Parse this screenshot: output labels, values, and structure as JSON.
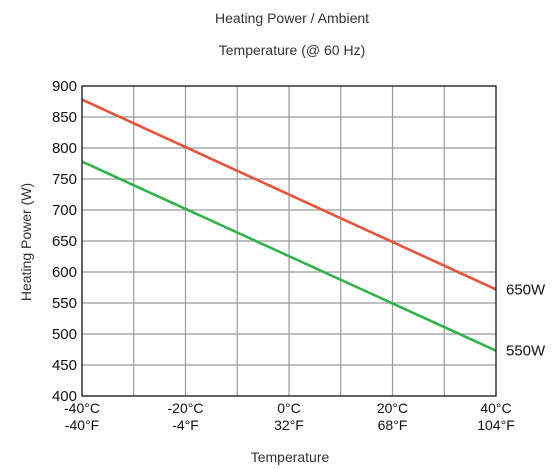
{
  "chart_data": {
    "type": "line",
    "title_line1": "Heating Power / Ambient",
    "title_line2": "Temperature (@ 60 Hz)",
    "xlabel": "Temperature",
    "ylabel": "Heating Power (W)",
    "x": [
      -40,
      40
    ],
    "xlim": [
      -40,
      40
    ],
    "ylim": [
      400,
      900
    ],
    "y_ticks": [
      "900",
      "850",
      "800",
      "750",
      "700",
      "650",
      "600",
      "550",
      "500",
      "450",
      "400"
    ],
    "x_ticks": [
      {
        "c": "-40°C",
        "f": "-40°F"
      },
      {
        "c": "-20°C",
        "f": "-4°F"
      },
      {
        "c": "0°C",
        "f": "32°F"
      },
      {
        "c": "20°C",
        "f": "68°F"
      },
      {
        "c": "40°C",
        "f": "104°F"
      }
    ],
    "grid": true,
    "series": [
      {
        "name": "650W",
        "values": [
          878,
          572
        ],
        "color": "#e8533a"
      },
      {
        "name": "550W",
        "values": [
          778,
          473
        ],
        "color": "#2db34a"
      }
    ]
  }
}
